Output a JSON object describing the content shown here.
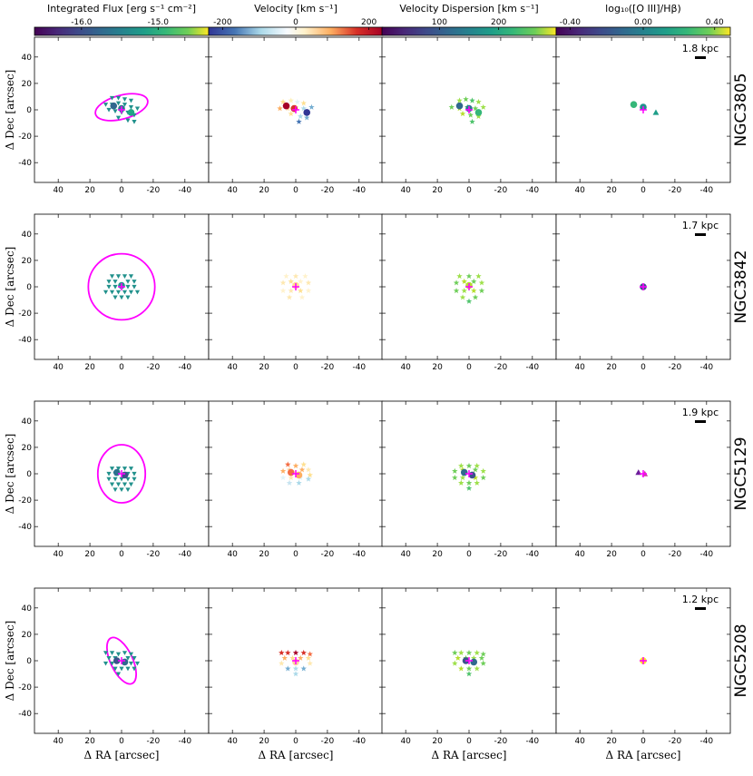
{
  "colorbars": [
    {
      "title": "Integrated Flux [erg s⁻¹ cm⁻²]",
      "ticks": [
        {
          "label": "-16.0",
          "frac": 0.27
        },
        {
          "label": "-15.0",
          "frac": 0.71
        }
      ],
      "colormap": "viridis"
    },
    {
      "title": "Velocity [km s⁻¹]",
      "ticks": [
        {
          "label": "-200",
          "frac": 0.08
        },
        {
          "label": "0",
          "frac": 0.5
        },
        {
          "label": "200",
          "frac": 0.92
        }
      ],
      "colormap": "RdYlBu_r"
    },
    {
      "title": "Velocity Dispersion [km s⁻¹]",
      "ticks": [
        {
          "label": "100",
          "frac": 0.33
        },
        {
          "label": "200",
          "frac": 0.67
        }
      ],
      "colormap": "viridis"
    },
    {
      "title": "log₁₀([O III]/Hβ)",
      "ticks": [
        {
          "label": "-0.40",
          "frac": 0.08
        },
        {
          "label": "0.00",
          "frac": 0.5
        },
        {
          "label": "0.40",
          "frac": 0.91
        }
      ],
      "colormap": "viridis"
    }
  ],
  "axes": {
    "xlabel": "Δ RA [arcsec]",
    "ylabel": "Δ Dec [arcsec]",
    "xlim": [
      55,
      -55
    ],
    "ylim": [
      -55,
      55
    ],
    "xticks": [
      40,
      20,
      0,
      -20,
      -40
    ],
    "yticks": [
      40,
      20,
      0,
      -20,
      -40
    ]
  },
  "chart_data": [
    {
      "type": "scatter",
      "galaxy": "NGC3805",
      "scale_bar": "1.8 kpc",
      "ellipse": {
        "cx": 0,
        "cy": 2,
        "rx": 17,
        "ry": 9,
        "angle_deg": -15
      },
      "flux": [
        [
          6,
          9
        ],
        [
          2,
          9
        ],
        [
          -2,
          8
        ],
        [
          -6,
          7
        ],
        [
          10,
          4
        ],
        [
          6,
          4
        ],
        [
          2,
          5
        ],
        [
          -2,
          4
        ],
        [
          -6,
          2
        ],
        [
          -10,
          1
        ],
        [
          8,
          0
        ],
        [
          4,
          -1
        ],
        [
          0,
          -2
        ],
        [
          -4,
          -2
        ],
        [
          -8,
          -4
        ],
        [
          2,
          -6
        ],
        [
          -4,
          -8
        ],
        [
          -8,
          -9
        ]
      ],
      "flux_big": [
        [
          5,
          3,
          "#31688e"
        ],
        [
          0,
          1,
          "#2a788e"
        ],
        [
          -6,
          -2,
          "#21a685"
        ]
      ],
      "velocity": [
        [
          8,
          6,
          "#fee090"
        ],
        [
          3,
          7,
          "#fdf0b8"
        ],
        [
          -1,
          6,
          "#e0f3f8"
        ],
        [
          -5,
          5,
          "#fee090"
        ],
        [
          10,
          1,
          "#fdae61"
        ],
        [
          5,
          1,
          "#fdd49e"
        ],
        [
          0,
          2,
          "#fee090"
        ],
        [
          -5,
          1,
          "#abd9e9"
        ],
        [
          -10,
          2,
          "#74add1"
        ],
        [
          3,
          -3,
          "#fee090"
        ],
        [
          -3,
          -5,
          "#abd9e9"
        ],
        [
          -7,
          -6,
          "#74add1"
        ],
        [
          -2,
          -9,
          "#4575b4"
        ]
      ],
      "velocity_big": [
        [
          6,
          3,
          "#a50026"
        ],
        [
          1,
          1,
          "#d73027"
        ],
        [
          -7,
          -2,
          "#313695"
        ]
      ],
      "dispersion": [
        [
          6,
          7,
          "#9ee04a"
        ],
        [
          2,
          8,
          "#6ece58"
        ],
        [
          -2,
          7,
          "#4ec36b"
        ],
        [
          -6,
          6,
          "#9ee04a"
        ],
        [
          11,
          2,
          "#6ece58"
        ],
        [
          6,
          1,
          "#b5de2b"
        ],
        [
          1,
          2,
          "#35b779"
        ],
        [
          -4,
          1,
          "#6ece58"
        ],
        [
          -9,
          2,
          "#9ee04a"
        ],
        [
          4,
          -3,
          "#b5de2b"
        ],
        [
          -1,
          -4,
          "#6ece58"
        ],
        [
          -6,
          -5,
          "#9ee04a"
        ],
        [
          -2,
          -9,
          "#4ec36b"
        ]
      ],
      "dispersion_big": [
        [
          6,
          3,
          "#31688e"
        ],
        [
          0,
          1,
          "#2a788e"
        ],
        [
          -6,
          -2,
          "#35b779"
        ]
      ],
      "ratio_big": [
        [
          6,
          4,
          "#35b779"
        ],
        [
          0,
          2,
          "#21918c"
        ]
      ],
      "ratio_tri": [
        [
          -8,
          -2,
          "#1f9e89"
        ]
      ]
    },
    {
      "type": "scatter",
      "galaxy": "NGC3842",
      "scale_bar": "1.7 kpc",
      "ellipse": {
        "cx": 0,
        "cy": 0,
        "rx": 21,
        "ry": 25,
        "angle_deg": 0
      },
      "flux": [
        [
          6,
          8
        ],
        [
          2,
          8
        ],
        [
          -2,
          8
        ],
        [
          -6,
          8
        ],
        [
          8,
          4
        ],
        [
          4,
          4
        ],
        [
          -4,
          4
        ],
        [
          -8,
          4
        ],
        [
          8,
          0
        ],
        [
          4,
          0
        ],
        [
          -4,
          0
        ],
        [
          -8,
          0
        ],
        [
          10,
          -4
        ],
        [
          6,
          -4
        ],
        [
          2,
          -4
        ],
        [
          -2,
          -4
        ],
        [
          -6,
          -4
        ],
        [
          -10,
          -4
        ],
        [
          4,
          -8
        ],
        [
          0,
          -8
        ],
        [
          -4,
          -8
        ]
      ],
      "flux_big": [
        [
          0,
          1,
          "#21918c"
        ]
      ],
      "velocity": [
        [
          6,
          8,
          "#fff2cc"
        ],
        [
          0,
          8,
          "#fee8b0"
        ],
        [
          -6,
          8,
          "#fff2cc"
        ],
        [
          8,
          3,
          "#fee8b0"
        ],
        [
          3,
          4,
          "#fee090"
        ],
        [
          -3,
          4,
          "#fff2cc"
        ],
        [
          -8,
          3,
          "#fee8b0"
        ],
        [
          8,
          -3,
          "#fff2cc"
        ],
        [
          3,
          -3,
          "#fee8b0"
        ],
        [
          -3,
          -3,
          "#fee090"
        ],
        [
          -8,
          -3,
          "#fff2cc"
        ],
        [
          4,
          -8,
          "#fee8b0"
        ],
        [
          -4,
          -8,
          "#fff2cc"
        ]
      ],
      "velocity_big": [
        [
          0,
          1,
          "#fee090"
        ]
      ],
      "dispersion": [
        [
          6,
          8,
          "#9ee04a"
        ],
        [
          0,
          8,
          "#6ece58"
        ],
        [
          -6,
          8,
          "#9ee04a"
        ],
        [
          8,
          3,
          "#6ece58"
        ],
        [
          3,
          4,
          "#b5de2b"
        ],
        [
          -3,
          4,
          "#6ece58"
        ],
        [
          -8,
          3,
          "#9ee04a"
        ],
        [
          8,
          -3,
          "#6ece58"
        ],
        [
          3,
          -3,
          "#9ee04a"
        ],
        [
          -3,
          -3,
          "#b5de2b"
        ],
        [
          -8,
          -3,
          "#6ece58"
        ],
        [
          4,
          -8,
          "#9ee04a"
        ],
        [
          -4,
          -8,
          "#6ece58"
        ],
        [
          0,
          -11,
          "#4ec36b"
        ]
      ],
      "dispersion_big": [
        [
          0,
          1,
          "#b5de2b"
        ]
      ],
      "ratio_big": [
        [
          0,
          0,
          "#3b528b"
        ]
      ],
      "ratio_tri": []
    },
    {
      "type": "scatter",
      "galaxy": "NGC5129",
      "scale_bar": "1.9 kpc",
      "ellipse": {
        "cx": 0,
        "cy": 0,
        "rx": 15,
        "ry": 22,
        "angle_deg": 0
      },
      "flux": [
        [
          6,
          4
        ],
        [
          2,
          4
        ],
        [
          -2,
          4
        ],
        [
          -6,
          4
        ],
        [
          8,
          0
        ],
        [
          4,
          0
        ],
        [
          -4,
          0
        ],
        [
          -8,
          0
        ],
        [
          8,
          -4
        ],
        [
          4,
          -4
        ],
        [
          0,
          -4
        ],
        [
          -4,
          -4
        ],
        [
          -8,
          -4
        ],
        [
          6,
          -8
        ],
        [
          2,
          -8
        ],
        [
          -2,
          -8
        ],
        [
          -6,
          -8
        ],
        [
          4,
          -12
        ],
        [
          0,
          -12
        ],
        [
          -4,
          -12
        ]
      ],
      "flux_big": [
        [
          3,
          1,
          "#2c728e"
        ],
        [
          -2,
          -1,
          "#3b528b"
        ]
      ],
      "velocity": [
        [
          5,
          7,
          "#f46d43"
        ],
        [
          0,
          6,
          "#fdae61"
        ],
        [
          -5,
          7,
          "#fee090"
        ],
        [
          -8,
          3,
          "#fee8b0"
        ],
        [
          8,
          2,
          "#fdae61"
        ],
        [
          4,
          3,
          "#fdd49e"
        ],
        [
          -4,
          3,
          "#fdae61"
        ],
        [
          -9,
          -1,
          "#fee090"
        ],
        [
          8,
          -3,
          "#e0f3f8"
        ],
        [
          3,
          -3,
          "#fee8b0"
        ],
        [
          -3,
          -3,
          "#e0f3f8"
        ],
        [
          -8,
          -4,
          "#abd9e9"
        ],
        [
          4,
          -7,
          "#c6e3f0"
        ],
        [
          -2,
          -7,
          "#abd9e9"
        ]
      ],
      "velocity_big": [
        [
          3,
          1,
          "#f46d43"
        ],
        [
          -2,
          -1,
          "#fdae61"
        ]
      ],
      "dispersion": [
        [
          5,
          6,
          "#9ee04a"
        ],
        [
          0,
          6,
          "#6ece58"
        ],
        [
          -5,
          6,
          "#9ee04a"
        ],
        [
          9,
          2,
          "#6ece58"
        ],
        [
          4,
          3,
          "#b5de2b"
        ],
        [
          -4,
          3,
          "#6ece58"
        ],
        [
          -9,
          2,
          "#9ee04a"
        ],
        [
          9,
          -3,
          "#6ece58"
        ],
        [
          4,
          -3,
          "#9ee04a"
        ],
        [
          -4,
          -3,
          "#b5de2b"
        ],
        [
          -9,
          -3,
          "#6ece58"
        ],
        [
          5,
          -7,
          "#9ee04a"
        ],
        [
          0,
          -7,
          "#6ece58"
        ],
        [
          -5,
          -7,
          "#9ee04a"
        ],
        [
          0,
          -11,
          "#4ec36b"
        ]
      ],
      "dispersion_big": [
        [
          3,
          1,
          "#31688e"
        ],
        [
          -2,
          -1,
          "#3b528b"
        ]
      ],
      "ratio_big": [],
      "ratio_tri": [
        [
          3,
          1,
          "#6d1f9b"
        ],
        [
          -1,
          0,
          "#c93fa0"
        ]
      ]
    },
    {
      "type": "scatter",
      "galaxy": "NGC5208",
      "scale_bar": "1.2 kpc",
      "ellipse": {
        "cx": 0,
        "cy": 0,
        "rx": 7,
        "ry": 19,
        "angle_deg": -25
      },
      "flux": [
        [
          10,
          6
        ],
        [
          6,
          6
        ],
        [
          2,
          5
        ],
        [
          -2,
          6
        ],
        [
          -6,
          5
        ],
        [
          8,
          2
        ],
        [
          4,
          2
        ],
        [
          -4,
          2
        ],
        [
          -8,
          2
        ],
        [
          10,
          -2
        ],
        [
          6,
          -2
        ],
        [
          -6,
          -2
        ],
        [
          -10,
          -2
        ],
        [
          4,
          -6
        ],
        [
          0,
          -6
        ],
        [
          -4,
          -6
        ],
        [
          -8,
          -6
        ],
        [
          2,
          -10
        ]
      ],
      "flux_big": [
        [
          3,
          0,
          "#3b528b"
        ],
        [
          -2,
          -1,
          "#31688e"
        ]
      ],
      "velocity": [
        [
          9,
          6,
          "#d73027"
        ],
        [
          5,
          6,
          "#d73027"
        ],
        [
          0,
          6,
          "#a50026"
        ],
        [
          -5,
          6,
          "#d73027"
        ],
        [
          -9,
          5,
          "#f46d43"
        ],
        [
          7,
          2,
          "#fdae61"
        ],
        [
          2,
          2,
          "#fee090"
        ],
        [
          -3,
          2,
          "#fdae61"
        ],
        [
          -8,
          2,
          "#fee090"
        ],
        [
          9,
          -2,
          "#fee8b0"
        ],
        [
          -9,
          -2,
          "#fee8b0"
        ],
        [
          5,
          -6,
          "#74add1"
        ],
        [
          0,
          -6,
          "#abd9e9"
        ],
        [
          -5,
          -6,
          "#74add1"
        ],
        [
          0,
          -10,
          "#abd9e9"
        ]
      ],
      "velocity_big": [
        [
          0,
          -1,
          "#fdd49e"
        ]
      ],
      "dispersion": [
        [
          9,
          6,
          "#6ece58"
        ],
        [
          5,
          6,
          "#9ee04a"
        ],
        [
          0,
          6,
          "#6ece58"
        ],
        [
          -5,
          6,
          "#9ee04a"
        ],
        [
          -9,
          5,
          "#6ece58"
        ],
        [
          7,
          2,
          "#b5de2b"
        ],
        [
          2,
          2,
          "#6ece58"
        ],
        [
          -3,
          2,
          "#9ee04a"
        ],
        [
          -8,
          2,
          "#6ece58"
        ],
        [
          9,
          -2,
          "#9ee04a"
        ],
        [
          -9,
          -2,
          "#6ece58"
        ],
        [
          5,
          -6,
          "#b5de2b"
        ],
        [
          0,
          -6,
          "#6ece58"
        ],
        [
          -5,
          -6,
          "#9ee04a"
        ],
        [
          0,
          -10,
          "#4ec36b"
        ]
      ],
      "dispersion_big": [
        [
          2,
          0,
          "#3b528b"
        ],
        [
          -3,
          -1,
          "#31688e"
        ]
      ],
      "ratio_big": [
        [
          0,
          0,
          "#fde725"
        ]
      ],
      "ratio_tri": []
    }
  ]
}
